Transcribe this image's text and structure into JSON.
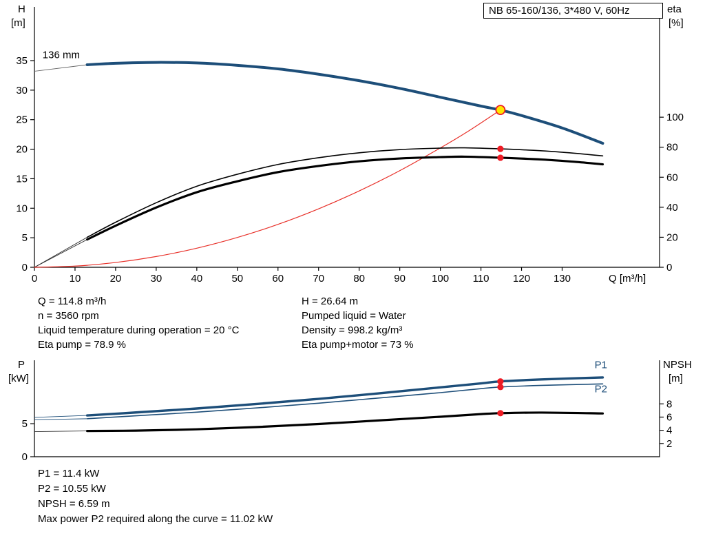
{
  "title_box": "NB 65-160/136, 3*480 V, 60Hz",
  "axis_titles": {
    "head": "H",
    "head_unit": "[m]",
    "eta": "eta",
    "eta_unit": "[%]",
    "flow": "Q [m³/h]",
    "power": "P",
    "power_unit": "[kW]",
    "npsh": "NPSH",
    "npsh_unit": "[m]"
  },
  "info_top_left": [
    "Q = 114.8 m³/h",
    "n = 3560 rpm",
    "Liquid temperature during operation = 20 °C",
    "Eta pump = 78.9 %"
  ],
  "info_top_right": [
    "H = 26.64 m",
    "Pumped liquid = Water",
    "Density = 998.2 kg/m³",
    "Eta pump+motor = 73 %"
  ],
  "info_bottom": [
    "P1 = 11.4 kW",
    "P2 = 10.55 kW",
    "NPSH = 6.59 m",
    "Max power P2 required along the curve = 11.02 kW"
  ],
  "colors": {
    "curve_blue": "#1d4e79",
    "curve_black": "#000000",
    "system_red": "#e8312a",
    "marker_red": "#ee1c25",
    "duty_yellow": "#ffe600",
    "lead_gray": "#666666"
  },
  "chart_data": [
    {
      "type": "line",
      "title": "NB 65-160/136, 3*480 V, 60Hz",
      "xlabel": "Q [m³/h]",
      "ylabel_left": "H [m]",
      "ylabel_right": "eta [%]",
      "xlim": [
        0,
        154
      ],
      "xticks": [
        0,
        10,
        20,
        30,
        40,
        50,
        60,
        70,
        80,
        90,
        100,
        110,
        120,
        130
      ],
      "ylim_left": [
        0,
        44.1
      ],
      "yticks_left": [
        0,
        5,
        10,
        15,
        20,
        25,
        30,
        35
      ],
      "ylim_right": [
        0,
        173.5
      ],
      "yticks_right": [
        0,
        20,
        40,
        60,
        80,
        100
      ],
      "grid": false,
      "annotations": [
        {
          "text": "136 mm",
          "q": 2,
          "v": 35.4,
          "axis": "left",
          "color": "#000000"
        }
      ],
      "series": [
        {
          "name": "system-curve",
          "axis": "left",
          "color": "#e8312a",
          "width": 1.2,
          "points": [
            [
              0,
              0
            ],
            [
              10,
              0.2
            ],
            [
              20,
              0.81
            ],
            [
              30,
              1.82
            ],
            [
              40,
              3.23
            ],
            [
              50,
              5.05
            ],
            [
              60,
              7.27
            ],
            [
              70,
              9.9
            ],
            [
              80,
              12.93
            ],
            [
              90,
              16.36
            ],
            [
              100,
              20.21
            ],
            [
              107,
              23.1
            ],
            [
              114.8,
              26.64
            ]
          ]
        },
        {
          "name": "eta-pump-curve",
          "axis": "right",
          "color": "#000000",
          "width": 1.6,
          "points": [
            [
              13,
              20
            ],
            [
              20,
              30
            ],
            [
              30,
              43
            ],
            [
              40,
              54
            ],
            [
              50,
              62
            ],
            [
              60,
              68.5
            ],
            [
              70,
              73
            ],
            [
              80,
              76.3
            ],
            [
              90,
              78.4
            ],
            [
              100,
              79.4
            ],
            [
              106,
              79.6
            ],
            [
              114.8,
              78.9
            ],
            [
              125,
              77.6
            ],
            [
              133,
              76
            ],
            [
              140,
              74.2
            ]
          ]
        },
        {
          "name": "eta-pump-motor-curve",
          "axis": "right",
          "color": "#000000",
          "width": 3.2,
          "points": [
            [
              13,
              18.5
            ],
            [
              20,
              27.7
            ],
            [
              30,
              39.8
            ],
            [
              40,
              50
            ],
            [
              50,
              57.3
            ],
            [
              60,
              63.4
            ],
            [
              70,
              67.5
            ],
            [
              80,
              70.6
            ],
            [
              90,
              72.5
            ],
            [
              100,
              73.4
            ],
            [
              106,
              73.7
            ],
            [
              114.8,
              73.0
            ],
            [
              125,
              71.8
            ],
            [
              133,
              70.3
            ],
            [
              140,
              68.6
            ]
          ]
        },
        {
          "name": "head-curve-136mm",
          "axis": "left",
          "color": "#1d4e79",
          "width": 4,
          "points": [
            [
              13,
              34.3
            ],
            [
              20,
              34.55
            ],
            [
              30,
              34.7
            ],
            [
              40,
              34.6
            ],
            [
              50,
              34.2
            ],
            [
              60,
              33.6
            ],
            [
              70,
              32.7
            ],
            [
              80,
              31.6
            ],
            [
              90,
              30.3
            ],
            [
              100,
              28.8
            ],
            [
              110,
              27.3
            ],
            [
              114.8,
              26.64
            ],
            [
              120,
              25.7
            ],
            [
              130,
              23.6
            ],
            [
              140,
              21.0
            ]
          ]
        }
      ],
      "lead_lines": [
        {
          "name": "head-lead-line",
          "axis": "left",
          "color": "#666666",
          "points": [
            [
              0,
              33.2
            ],
            [
              13,
              34.3
            ]
          ]
        },
        {
          "name": "eta-pump-lead-line",
          "axis": "right",
          "color": "#333333",
          "points": [
            [
              0,
              0
            ],
            [
              13,
              20
            ]
          ]
        },
        {
          "name": "eta-pump-motor-lead-line",
          "axis": "right",
          "color": "#333333",
          "points": [
            [
              0,
              0
            ],
            [
              13,
              18.5
            ]
          ]
        }
      ],
      "markers": [
        {
          "name": "eta-pump-point",
          "q": 114.8,
          "v": 78.9,
          "axis": "right",
          "style": "dot"
        },
        {
          "name": "eta-pump-motor-point",
          "q": 114.8,
          "v": 73.0,
          "axis": "right",
          "style": "dot"
        },
        {
          "name": "duty-point",
          "q": 114.8,
          "v": 26.64,
          "axis": "left",
          "style": "duty"
        }
      ]
    },
    {
      "type": "line",
      "title": "",
      "xlabel": "",
      "ylabel_left": "P [kW]",
      "ylabel_right": "NPSH [m]",
      "xlim": [
        0,
        154
      ],
      "xticks": [],
      "ylim_left": [
        0,
        14.6
      ],
      "yticks_left": [
        0,
        5
      ],
      "ylim_right": [
        0,
        14.6
      ],
      "yticks_right": [
        2,
        4,
        6,
        8
      ],
      "grid": false,
      "annotations": [
        {
          "text": "P1",
          "q": 138,
          "v": 13.4,
          "axis": "left",
          "color": "#1d4e79"
        },
        {
          "text": "P2",
          "q": 138,
          "v": 9.75,
          "axis": "left",
          "color": "#1d4e79"
        }
      ],
      "series": [
        {
          "name": "p1-curve",
          "axis": "left",
          "color": "#1d4e79",
          "width": 3.4,
          "points": [
            [
              13,
              6.25
            ],
            [
              25,
              6.7
            ],
            [
              40,
              7.3
            ],
            [
              55,
              8.0
            ],
            [
              70,
              8.75
            ],
            [
              85,
              9.6
            ],
            [
              100,
              10.5
            ],
            [
              110,
              11.1
            ],
            [
              114.8,
              11.4
            ],
            [
              125,
              11.7
            ],
            [
              140,
              12.0
            ]
          ]
        },
        {
          "name": "p2-curve",
          "axis": "left",
          "color": "#1d4e79",
          "width": 1.6,
          "points": [
            [
              13,
              5.75
            ],
            [
              25,
              6.2
            ],
            [
              40,
              6.75
            ],
            [
              55,
              7.4
            ],
            [
              70,
              8.1
            ],
            [
              85,
              8.9
            ],
            [
              100,
              9.7
            ],
            [
              110,
              10.3
            ],
            [
              114.8,
              10.55
            ],
            [
              125,
              10.8
            ],
            [
              140,
              11.02
            ]
          ]
        },
        {
          "name": "npsh-curve",
          "axis": "right",
          "color": "#000000",
          "width": 3.2,
          "points": [
            [
              13,
              3.9
            ],
            [
              25,
              3.95
            ],
            [
              40,
              4.15
            ],
            [
              55,
              4.5
            ],
            [
              70,
              4.95
            ],
            [
              85,
              5.5
            ],
            [
              100,
              6.05
            ],
            [
              110,
              6.45
            ],
            [
              114.8,
              6.59
            ],
            [
              125,
              6.68
            ],
            [
              140,
              6.55
            ]
          ]
        }
      ],
      "lead_lines": [
        {
          "name": "p1-lead-line",
          "axis": "left",
          "color": "#1d4e79",
          "points": [
            [
              0,
              5.95
            ],
            [
              13,
              6.25
            ]
          ]
        },
        {
          "name": "p2-lead-line",
          "axis": "left",
          "color": "#1d4e79",
          "points": [
            [
              0,
              5.6
            ],
            [
              13,
              5.75
            ]
          ]
        },
        {
          "name": "npsh-lead-line",
          "axis": "right",
          "color": "#333333",
          "points": [
            [
              0,
              3.8
            ],
            [
              13,
              3.9
            ]
          ]
        }
      ],
      "markers": [
        {
          "name": "p1-point",
          "q": 114.8,
          "v": 11.4,
          "axis": "left",
          "style": "dot"
        },
        {
          "name": "p2-point",
          "q": 114.8,
          "v": 10.55,
          "axis": "left",
          "style": "dot"
        },
        {
          "name": "npsh-point",
          "q": 114.8,
          "v": 6.59,
          "axis": "right",
          "style": "dot"
        }
      ]
    }
  ]
}
